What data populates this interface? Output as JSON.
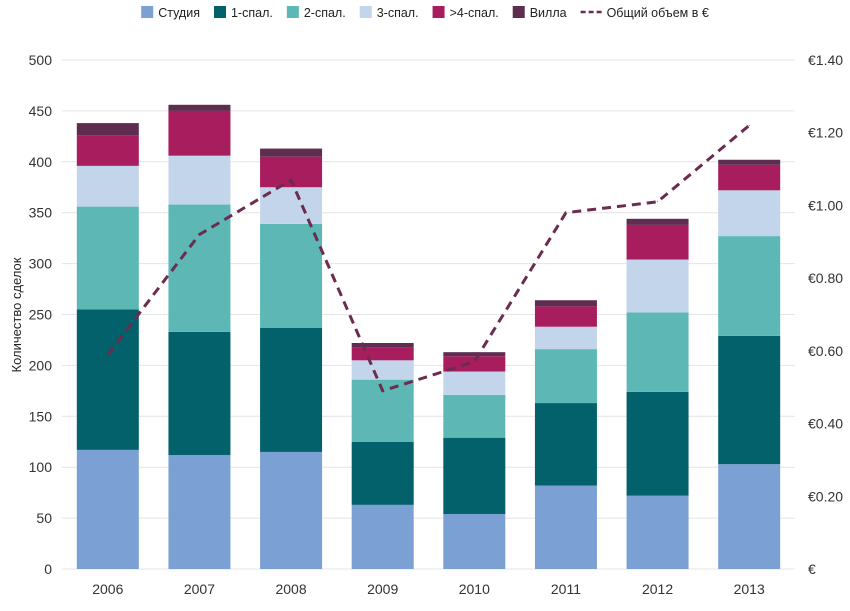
{
  "chart_data": {
    "type": "bar",
    "stacked": true,
    "categories": [
      "2006",
      "2007",
      "2008",
      "2009",
      "2010",
      "2011",
      "2012",
      "2013"
    ],
    "ylabel": "Количество сделок",
    "ylim": [
      0,
      500
    ],
    "y_ticks": [
      "0",
      "50",
      "100",
      "150",
      "200",
      "250",
      "300",
      "350",
      "400",
      "450",
      "500"
    ],
    "y2lim": [
      0,
      1.4
    ],
    "y2_ticks": [
      "€",
      "€0.20",
      "€0.40",
      "€0.60",
      "€0.80",
      "€1.00",
      "€1.20",
      "€1.40"
    ],
    "grid": true,
    "legend_position": "top",
    "series": [
      {
        "name": "Студия",
        "color": "#7ba1d4",
        "values": [
          117,
          112,
          115,
          63,
          54,
          82,
          72,
          103
        ]
      },
      {
        "name": "1-спал.",
        "color": "#03616b",
        "values": [
          138,
          121,
          122,
          62,
          75,
          81,
          102,
          126
        ]
      },
      {
        "name": "2-спал.",
        "color": "#5db8b5",
        "values": [
          101,
          125,
          102,
          61,
          42,
          53,
          78,
          98
        ]
      },
      {
        "name": "3-спал.",
        "color": "#c3d5eb",
        "values": [
          40,
          48,
          36,
          19,
          23,
          22,
          52,
          45
        ]
      },
      {
        "name": ">4-спал.",
        "color": "#a81d5e",
        "values": [
          30,
          44,
          30,
          13,
          15,
          20,
          34,
          25
        ]
      },
      {
        "name": "Вилла",
        "color": "#5e2d4f",
        "values": [
          12,
          6,
          8,
          4,
          4,
          6,
          6,
          5
        ]
      }
    ],
    "line_series": {
      "name": "Общий объем в €",
      "color": "#6b2c4f",
      "axis": "right",
      "values": [
        0.59,
        0.92,
        1.07,
        0.49,
        0.57,
        0.98,
        1.01,
        1.22
      ]
    }
  }
}
